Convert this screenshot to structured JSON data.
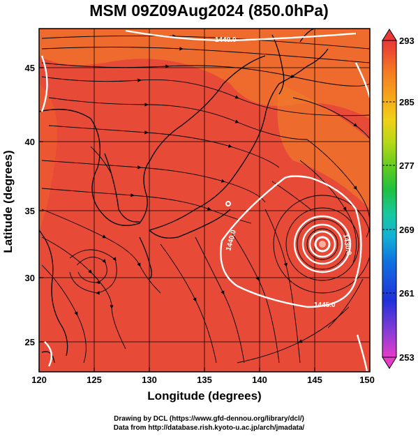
{
  "title": "MSM 09Z09Aug2024 (850.0hPa)",
  "x_axis": {
    "label": "Longitude (degrees)",
    "ticks": [
      "120",
      "125",
      "130",
      "135",
      "140",
      "145",
      "150"
    ],
    "range": [
      120,
      150
    ]
  },
  "y_axis": {
    "label": "Latitude  (degrees)",
    "ticks": [
      "25",
      "30",
      "35",
      "40",
      "45"
    ],
    "range": [
      22.5,
      47.5
    ]
  },
  "colorbar": {
    "ticks": [
      "293",
      "285",
      "277",
      "269",
      "261",
      "253"
    ],
    "range": [
      253,
      293
    ],
    "colors": [
      "#e63cc8",
      "#8a3cd6",
      "#2030d8",
      "#1070e0",
      "#12b0d6",
      "#18c8a0",
      "#20c040",
      "#60cc20",
      "#b8d818",
      "#f0d018",
      "#f5a81a",
      "#f47c22",
      "#ec5030",
      "#e83838"
    ]
  },
  "contours": {
    "labels": [
      "1440.0",
      "1440.0",
      "1445.0",
      "1430.0"
    ]
  },
  "map": {
    "field_color": "#e84a38",
    "warm_color": "#f0702c",
    "coast_color": "#000000",
    "streamline_color": "#000000",
    "contour_color": "#ffffff"
  },
  "credits": {
    "line1": "Drawing by DCL (https://www.gfd-dennou.org/library/dcl/)",
    "line2": "Data from http://database.rish.kyoto-u.ac.jp/arch/jmadata/"
  }
}
